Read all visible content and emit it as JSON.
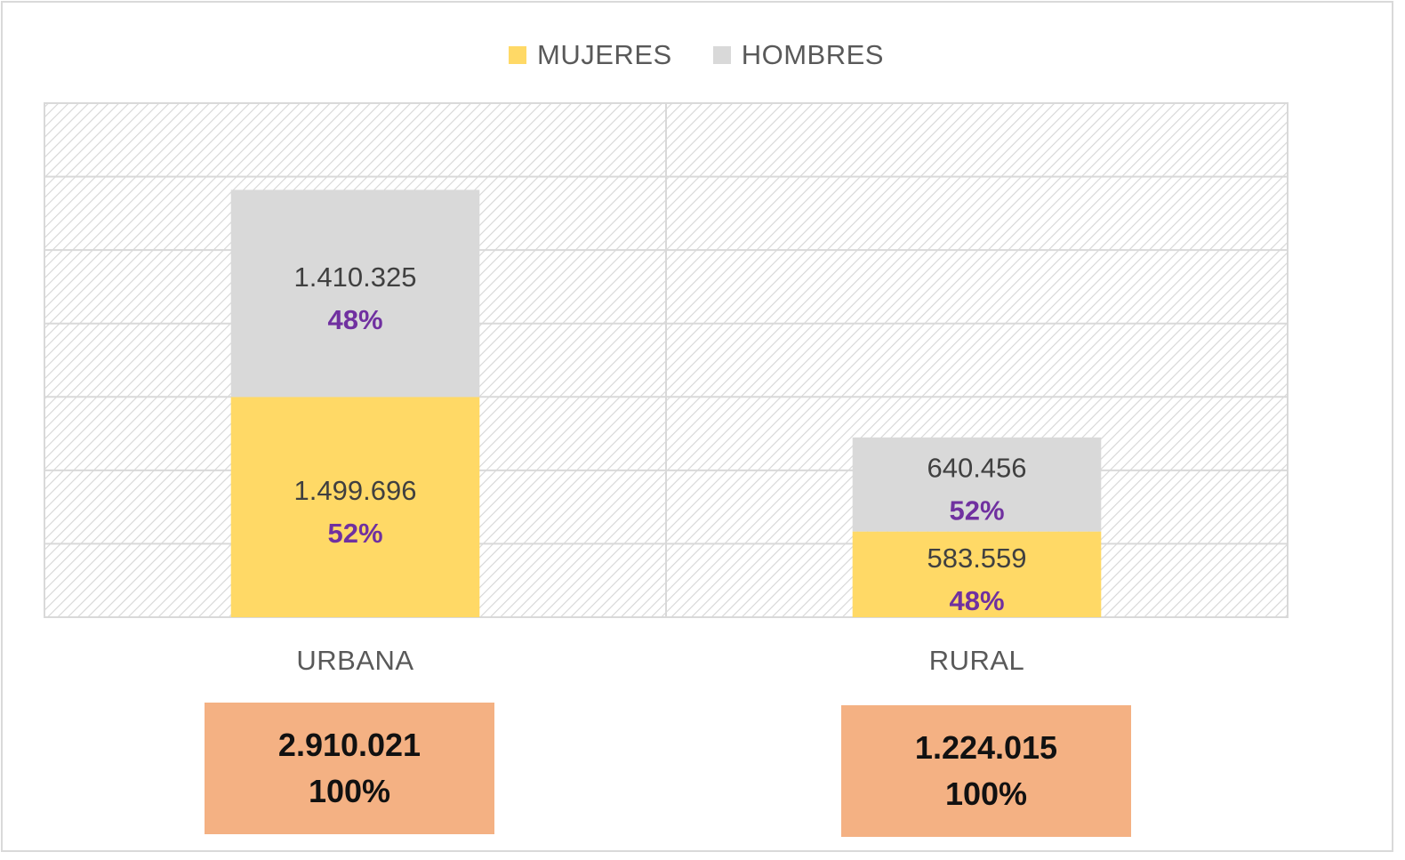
{
  "chart_data": {
    "type": "bar",
    "stacked": true,
    "categories": [
      "URBANA",
      "RURAL"
    ],
    "series": [
      {
        "name": "MUJERES",
        "values": [
          1499696,
          583559
        ],
        "labels": [
          "1.499.696",
          "583.559"
        ],
        "pct": [
          "52%",
          "48%"
        ],
        "color": "#ffd966"
      },
      {
        "name": "HOMBRES",
        "values": [
          1410325,
          640456
        ],
        "labels": [
          "1.410.325",
          "640.456"
        ],
        "pct": [
          "48%",
          "52%"
        ],
        "color": "#d9d9d9"
      }
    ],
    "totals": [
      {
        "value": "2.910.021",
        "pct": "100%"
      },
      {
        "value": "1.224.015",
        "pct": "100%"
      }
    ],
    "ylim": [
      0,
      3500000
    ],
    "grid": true,
    "legend_position": "top",
    "label_color": "#404040",
    "pct_color": "#7030a0",
    "total_box_color": "#f4b183"
  }
}
